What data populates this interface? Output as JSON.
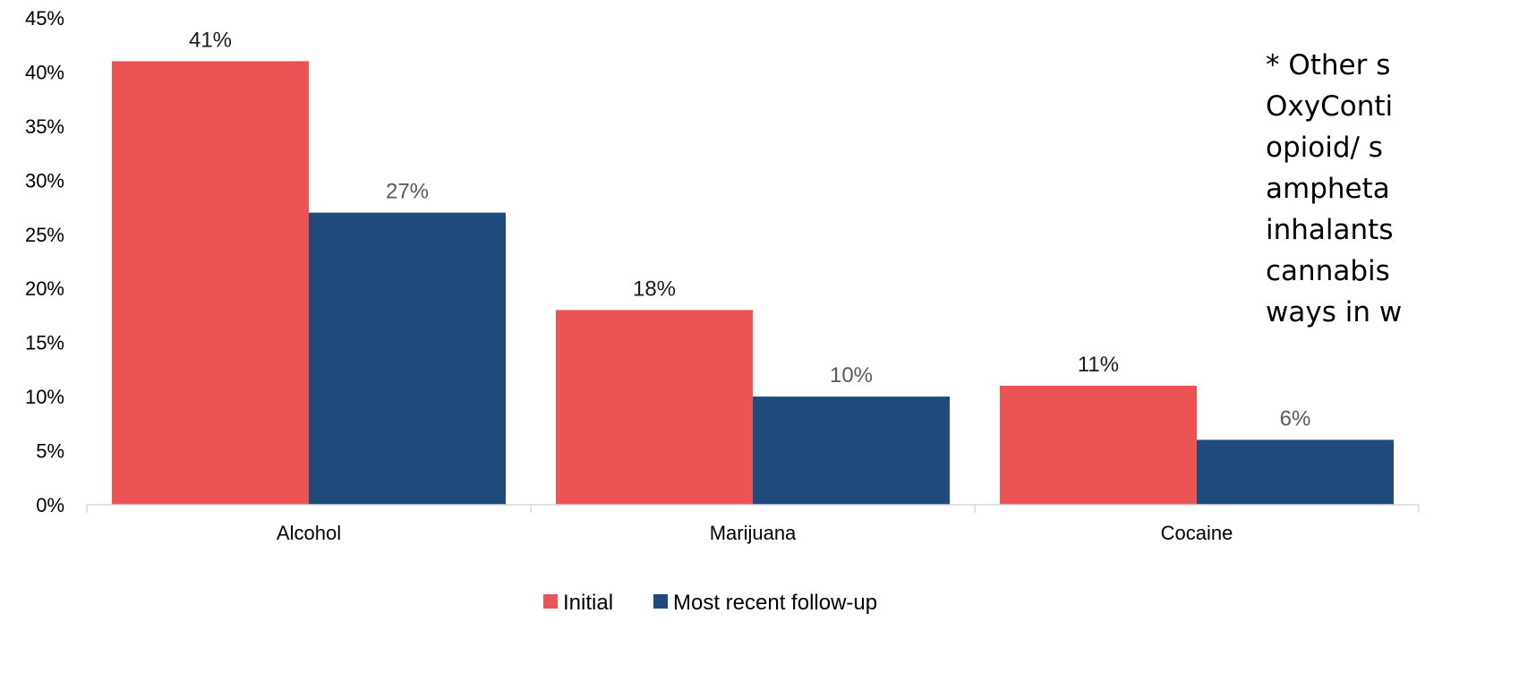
{
  "chart_data": {
    "type": "bar",
    "categories": [
      "Alcohol",
      "Marijuana",
      "Cocaine"
    ],
    "series": [
      {
        "name": "Initial",
        "color": "#EB5355",
        "values": [
          41,
          18,
          11
        ],
        "labels": [
          "41%",
          "18%",
          "11%"
        ],
        "label_color": "#1a1a1a"
      },
      {
        "name": "Most recent follow-up",
        "color": "#1F4A7C",
        "values": [
          27,
          10,
          6
        ],
        "labels": [
          "27%",
          "10%",
          "6%"
        ],
        "label_color": "#595959"
      }
    ],
    "ylim": [
      0,
      45
    ],
    "yticks": [
      0,
      5,
      10,
      15,
      20,
      25,
      30,
      35,
      40,
      45
    ],
    "ytick_labels": [
      "0%",
      "5%",
      "10%",
      "15%",
      "20%",
      "25%",
      "30%",
      "35%",
      "40%",
      "45%"
    ],
    "title": "",
    "xlabel": "",
    "ylabel": "",
    "grid": false,
    "legend_position": "bottom"
  },
  "note": {
    "lines": [
      "* Other s",
      "OxyConti",
      "opioid/ s",
      "ampheta",
      "inhalants",
      "cannabis",
      "ways in w"
    ]
  }
}
